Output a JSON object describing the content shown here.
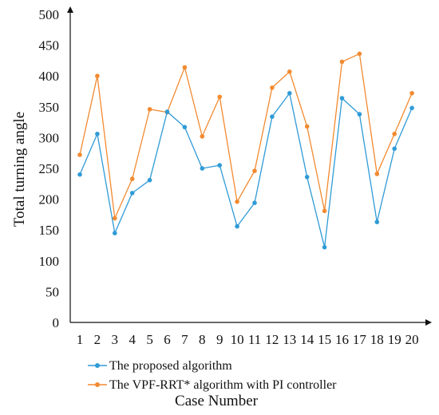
{
  "chart_data": {
    "type": "line",
    "xlabel": "Case Number",
    "ylabel": "Total turning angle",
    "x": [
      1,
      2,
      3,
      4,
      5,
      6,
      7,
      8,
      9,
      10,
      11,
      12,
      13,
      14,
      15,
      16,
      17,
      18,
      19,
      20
    ],
    "ylim": [
      0,
      500
    ],
    "yticks": [
      0,
      50,
      100,
      150,
      200,
      250,
      300,
      350,
      400,
      450,
      500
    ],
    "grid": false,
    "legend_position": "bottom",
    "series": [
      {
        "name": "The proposed algorithm",
        "color": "#2f9bd6",
        "values": [
          240,
          306,
          145,
          210,
          231,
          342,
          317,
          250,
          255,
          156,
          194,
          334,
          372,
          236,
          122,
          364,
          338,
          163,
          282,
          348
        ]
      },
      {
        "name": "The VPF-RRT* algorithm with PI controller",
        "color": "#f28a30",
        "values": [
          272,
          400,
          169,
          233,
          346,
          341,
          414,
          302,
          366,
          196,
          246,
          381,
          407,
          318,
          181,
          423,
          436,
          241,
          306,
          372
        ]
      }
    ]
  }
}
